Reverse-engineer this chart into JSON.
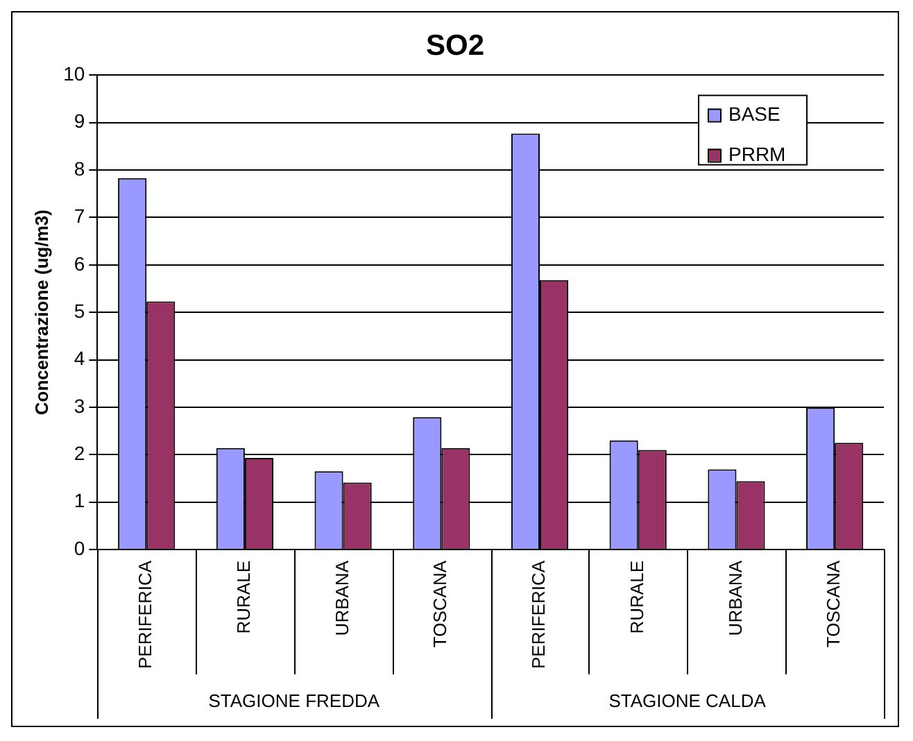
{
  "chart_data": {
    "type": "bar",
    "title": "SO2",
    "ylabel": "Concentrazione (ug/m3)",
    "categories": [
      "PERIFERICA",
      "RURALE",
      "URBANA",
      "TOSCANA",
      "PERIFERICA",
      "RURALE",
      "URBANA",
      "TOSCANA"
    ],
    "annotations": [
      "STAGIONE FREDDA",
      "STAGIONE CALDA"
    ],
    "series": [
      {
        "name": "BASE",
        "color": "#9999ff",
        "values": [
          7.83,
          2.14,
          1.65,
          2.79,
          8.77,
          2.3,
          1.69,
          2.99
        ]
      },
      {
        "name": "PRRM",
        "color": "#993366",
        "values": [
          5.23,
          1.93,
          1.41,
          2.14,
          5.68,
          2.1,
          1.44,
          2.25
        ]
      }
    ],
    "ylim": [
      0,
      10
    ],
    "yticks": [
      0,
      1,
      2,
      3,
      4,
      5,
      6,
      7,
      8,
      9,
      10
    ],
    "grid": "y",
    "legend": "top right"
  }
}
